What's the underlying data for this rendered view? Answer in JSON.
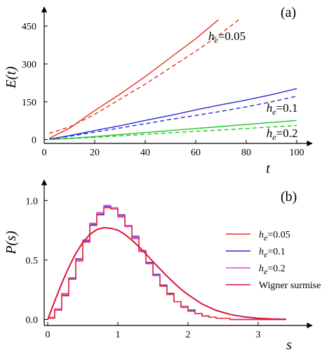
{
  "chart_data": [
    {
      "panel_label": "(a)",
      "type": "line",
      "xlabel": "t",
      "ylabel": "E(t)",
      "xlim": [
        0,
        100
      ],
      "ylim": [
        -15,
        520
      ],
      "xticks": [
        0,
        20,
        40,
        60,
        80,
        100
      ],
      "yticks": [
        0,
        150,
        300,
        450
      ],
      "grid": false,
      "annotations": [
        {
          "text": "he=0.05",
          "at": [
            65,
            395
          ]
        },
        {
          "text": "he=0.1",
          "at": [
            88,
            110
          ]
        },
        {
          "text": "he=0.2",
          "at": [
            88,
            10
          ]
        }
      ],
      "series": [
        {
          "color": "#e8301e",
          "dash": "solid",
          "x": [
            2,
            5,
            10,
            20,
            30,
            40,
            50,
            60,
            69
          ],
          "y": [
            5,
            20,
            45,
            115,
            180,
            250,
            325,
            400,
            475
          ]
        },
        {
          "color": "#e8301e",
          "dash": "dashed",
          "x": [
            2,
            10,
            20,
            30,
            40,
            50,
            60,
            70,
            77
          ],
          "y": [
            25,
            50,
            100,
            160,
            220,
            285,
            350,
            420,
            475
          ]
        },
        {
          "color": "#2a2ad4",
          "dash": "solid",
          "x": [
            2,
            10,
            20,
            30,
            40,
            50,
            60,
            70,
            80,
            90,
            100
          ],
          "y": [
            2,
            16,
            36,
            55,
            76,
            96,
            118,
            138,
            157,
            178,
            202
          ]
        },
        {
          "color": "#2a2ad4",
          "dash": "dashed",
          "x": [
            2,
            10,
            20,
            30,
            40,
            50,
            60,
            70,
            80,
            90,
            100
          ],
          "y": [
            2,
            13,
            30,
            46,
            63,
            80,
            96,
            112,
            130,
            150,
            172
          ]
        },
        {
          "color": "#22c422",
          "dash": "solid",
          "x": [
            2,
            10,
            20,
            30,
            40,
            50,
            60,
            70,
            80,
            90,
            100
          ],
          "y": [
            0,
            5,
            12,
            20,
            28,
            36,
            44,
            52,
            60,
            68,
            76
          ]
        },
        {
          "color": "#22c422",
          "dash": "dashed",
          "x": [
            2,
            10,
            20,
            30,
            40,
            50,
            60,
            70,
            80,
            90,
            100
          ],
          "y": [
            0,
            4,
            9,
            15,
            21,
            27,
            33,
            38,
            44,
            50,
            56
          ]
        }
      ]
    },
    {
      "panel_label": "(b)",
      "type": "line",
      "xlabel": "s",
      "ylabel": "P(s)",
      "xlim": [
        -0.05,
        3.55
      ],
      "ylim": [
        -0.05,
        1.12
      ],
      "xticks": [
        0,
        1,
        2,
        3
      ],
      "yticks": [
        0.0,
        0.5,
        1.0
      ],
      "ytick_labels": [
        "0.0",
        "0.5",
        "1.0"
      ],
      "grid": false,
      "legend_position": "right",
      "legend": [
        {
          "label": "he=0.05",
          "color": "#e8301e"
        },
        {
          "label": "he=0.1",
          "color": "#2a2ad4"
        },
        {
          "label": "he=0.2",
          "color": "#ee3cee"
        },
        {
          "label": "Wigner surmise",
          "color": "#e0103a"
        }
      ],
      "histograms": [
        {
          "color": "#2a2ad4",
          "bin_width": 0.1,
          "s_start": 0.0,
          "values": [
            0.01,
            0.08,
            0.2,
            0.34,
            0.51,
            0.66,
            0.8,
            0.88,
            0.95,
            0.93,
            0.88,
            0.79,
            0.7,
            0.58,
            0.48,
            0.38,
            0.29,
            0.22,
            0.15,
            0.11,
            0.08,
            0.05,
            0.03,
            0.02,
            0.01,
            0.01,
            0.0,
            0.0,
            0.0,
            0.0,
            0.0,
            0.0,
            0.0,
            0.0
          ]
        },
        {
          "color": "#ee3cee",
          "bin_width": 0.1,
          "s_start": 0.0,
          "values": [
            0.02,
            0.09,
            0.22,
            0.35,
            0.49,
            0.67,
            0.81,
            0.9,
            0.96,
            0.94,
            0.86,
            0.78,
            0.68,
            0.57,
            0.47,
            0.37,
            0.28,
            0.21,
            0.15,
            0.1,
            0.07,
            0.05,
            0.03,
            0.02,
            0.01,
            0.01,
            0.0,
            0.0,
            0.0,
            0.0,
            0.0,
            0.0,
            0.0,
            0.0
          ]
        },
        {
          "color": "#e8301e",
          "bin_width": 0.1,
          "s_start": 0.0,
          "values": [
            0.01,
            0.08,
            0.21,
            0.35,
            0.5,
            0.65,
            0.79,
            0.89,
            0.94,
            0.93,
            0.87,
            0.79,
            0.69,
            0.58,
            0.47,
            0.37,
            0.28,
            0.21,
            0.15,
            0.11,
            0.07,
            0.05,
            0.03,
            0.02,
            0.01,
            0.01,
            0.0,
            0.0,
            0.0,
            0.0,
            0.0,
            0.0,
            0.0,
            0.0
          ]
        }
      ],
      "wigner_curve": {
        "color": "#e0103a",
        "s": [
          0,
          0.1,
          0.2,
          0.3,
          0.4,
          0.5,
          0.6,
          0.7,
          0.8,
          0.9,
          1.0,
          1.1,
          1.2,
          1.3,
          1.4,
          1.5,
          1.6,
          1.7,
          1.8,
          1.9,
          2.0,
          2.2,
          2.4,
          2.6,
          2.8,
          3.0,
          3.2,
          3.4
        ],
        "P": [
          0.0,
          0.155,
          0.304,
          0.438,
          0.555,
          0.647,
          0.715,
          0.756,
          0.772,
          0.767,
          0.751,
          0.716,
          0.668,
          0.612,
          0.551,
          0.488,
          0.425,
          0.365,
          0.308,
          0.255,
          0.209,
          0.131,
          0.077,
          0.043,
          0.022,
          0.011,
          0.005,
          0.002
        ]
      }
    }
  ]
}
